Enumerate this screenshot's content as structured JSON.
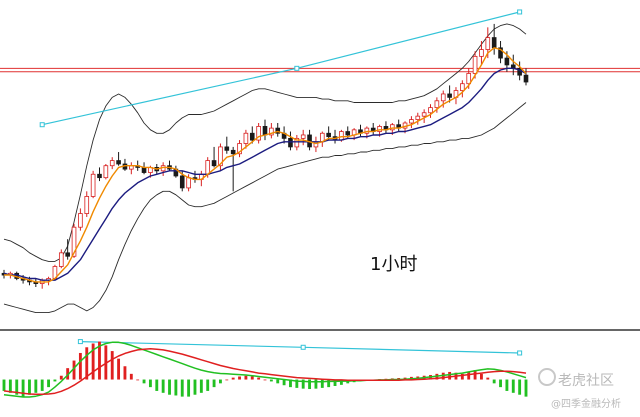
{
  "chart_data": {
    "type": "candlestick",
    "timeframe_label": "1小时",
    "watermark": {
      "brand": "老虎社区",
      "handle": "@四季金融分析"
    },
    "colors": {
      "up": "#d82020",
      "down": "#1a1a1a",
      "bollinger": "#2b2b2b",
      "ma_fast": "#f08a00",
      "ma_slow": "#1c1c80",
      "trendline": "#33c3d8",
      "horizontal_level": "#e03030",
      "macd_dif": "#22c022",
      "macd_dea": "#e02020"
    },
    "candles": [
      [
        102,
        104,
        99,
        101
      ],
      [
        101,
        103,
        99,
        102
      ],
      [
        102,
        103,
        98,
        99
      ],
      [
        99,
        101,
        96,
        98
      ],
      [
        98,
        100,
        95,
        97
      ],
      [
        97,
        99,
        94,
        96
      ],
      [
        96,
        99,
        93,
        98
      ],
      [
        98,
        100,
        95,
        99
      ],
      [
        99,
        107,
        98,
        106
      ],
      [
        106,
        116,
        105,
        114
      ],
      [
        114,
        122,
        110,
        112
      ],
      [
        112,
        131,
        111,
        129
      ],
      [
        129,
        140,
        127,
        137
      ],
      [
        137,
        150,
        135,
        147
      ],
      [
        147,
        162,
        146,
        160
      ],
      [
        160,
        164,
        156,
        158
      ],
      [
        158,
        166,
        157,
        165
      ],
      [
        165,
        170,
        163,
        168
      ],
      [
        168,
        173,
        165,
        166
      ],
      [
        166,
        169,
        162,
        163
      ],
      [
        163,
        167,
        160,
        165
      ],
      [
        165,
        168,
        162,
        164
      ],
      [
        164,
        167,
        160,
        161
      ],
      [
        161,
        165,
        158,
        164
      ],
      [
        164,
        166,
        160,
        162
      ],
      [
        162,
        167,
        159,
        165
      ],
      [
        165,
        168,
        162,
        163
      ],
      [
        163,
        165,
        158,
        159
      ],
      [
        159,
        162,
        150,
        152
      ],
      [
        152,
        160,
        150,
        158
      ],
      [
        158,
        162,
        155,
        157
      ],
      [
        157,
        162,
        153,
        160
      ],
      [
        160,
        170,
        158,
        168
      ],
      [
        168,
        176,
        164,
        165
      ],
      [
        165,
        178,
        162,
        176
      ],
      [
        176,
        182,
        172,
        174
      ],
      [
        174,
        176,
        150,
        172
      ],
      [
        172,
        180,
        170,
        178
      ],
      [
        178,
        186,
        175,
        184
      ],
      [
        184,
        188,
        178,
        180
      ],
      [
        180,
        190,
        178,
        188
      ],
      [
        188,
        192,
        180,
        183
      ],
      [
        183,
        190,
        181,
        187
      ],
      [
        187,
        190,
        182,
        184
      ],
      [
        184,
        188,
        178,
        181
      ],
      [
        181,
        185,
        174,
        176
      ],
      [
        176,
        183,
        174,
        181
      ],
      [
        181,
        186,
        177,
        183
      ],
      [
        183,
        186,
        174,
        176
      ],
      [
        176,
        182,
        173,
        179
      ],
      [
        179,
        185,
        176,
        184
      ],
      [
        184,
        188,
        180,
        182
      ],
      [
        182,
        186,
        178,
        180
      ],
      [
        180,
        186,
        179,
        185
      ],
      [
        185,
        188,
        181,
        183
      ],
      [
        183,
        187,
        180,
        186
      ],
      [
        186,
        189,
        182,
        184
      ],
      [
        184,
        188,
        181,
        187
      ],
      [
        187,
        190,
        183,
        185
      ],
      [
        185,
        189,
        182,
        188
      ],
      [
        188,
        191,
        184,
        186
      ],
      [
        186,
        190,
        183,
        189
      ],
      [
        189,
        192,
        185,
        187
      ],
      [
        187,
        191,
        184,
        190
      ],
      [
        190,
        194,
        187,
        192
      ],
      [
        192,
        196,
        189,
        194
      ],
      [
        194,
        198,
        190,
        196
      ],
      [
        196,
        201,
        193,
        199
      ],
      [
        199,
        205,
        196,
        203
      ],
      [
        203,
        209,
        199,
        207
      ],
      [
        207,
        212,
        202,
        205
      ],
      [
        205,
        211,
        201,
        209
      ],
      [
        209,
        215,
        205,
        213
      ],
      [
        213,
        222,
        210,
        219
      ],
      [
        219,
        232,
        216,
        229
      ],
      [
        229,
        238,
        224,
        233
      ],
      [
        233,
        246,
        228,
        240
      ],
      [
        240,
        248,
        230,
        234
      ],
      [
        234,
        238,
        225,
        228
      ],
      [
        228,
        232,
        220,
        224
      ],
      [
        224,
        230,
        218,
        222
      ],
      [
        222,
        226,
        215,
        218
      ],
      [
        218,
        222,
        212,
        214
      ]
    ],
    "moving_averages": [
      {
        "period": "fast",
        "values": [
          101,
          101,
          100,
          99,
          98,
          97,
          97,
          97,
          99,
          103,
          107,
          114,
          121,
          129,
          138,
          146,
          153,
          159,
          164,
          165,
          165,
          165,
          164,
          164,
          163,
          164,
          164,
          163,
          160,
          158,
          157,
          157,
          160,
          163,
          166,
          170,
          171,
          173,
          176,
          179,
          182,
          183,
          184,
          185,
          184,
          182,
          180,
          180,
          179,
          178,
          179,
          181,
          181,
          182,
          182,
          183,
          184,
          185,
          185,
          186,
          186,
          187,
          187,
          188,
          189,
          191,
          193,
          195,
          198,
          201,
          203,
          205,
          208,
          212,
          218,
          224,
          231,
          234,
          233,
          230,
          226,
          223,
          219
        ]
      },
      {
        "period": "slow",
        "values": [
          102,
          101,
          101,
          100,
          99,
          99,
          98,
          98,
          98,
          100,
          102,
          106,
          110,
          116,
          122,
          128,
          134,
          140,
          145,
          149,
          152,
          155,
          157,
          159,
          160,
          161,
          162,
          162,
          162,
          161,
          160,
          160,
          160,
          161,
          162,
          164,
          165,
          166,
          168,
          170,
          172,
          174,
          176,
          178,
          179,
          179,
          179,
          179,
          179,
          179,
          179,
          180,
          180,
          180,
          181,
          181,
          182,
          182,
          183,
          183,
          184,
          184,
          185,
          185,
          186,
          187,
          188,
          189,
          191,
          193,
          195,
          197,
          199,
          202,
          206,
          210,
          215,
          219,
          221,
          222,
          222,
          221,
          219
        ]
      }
    ],
    "bollinger_bands": {
      "upper": [
        122,
        121,
        119,
        117,
        114,
        112,
        110,
        109,
        109,
        111,
        118,
        132,
        148,
        165,
        180,
        192,
        200,
        205,
        207,
        205,
        201,
        196,
        190,
        186,
        184,
        184,
        186,
        190,
        193,
        195,
        195,
        195,
        196,
        197,
        199,
        201,
        203,
        205,
        207,
        209,
        210,
        210,
        209,
        208,
        207,
        206,
        205,
        205,
        205,
        205,
        204,
        204,
        203,
        203,
        203,
        202,
        202,
        202,
        202,
        202,
        202,
        202,
        203,
        203,
        204,
        205,
        206,
        208,
        210,
        213,
        216,
        219,
        222,
        226,
        231,
        236,
        241,
        245,
        247,
        248,
        247,
        245,
        242
      ],
      "lower": [
        84,
        83,
        82,
        81,
        80,
        79,
        79,
        79,
        80,
        82,
        84,
        84,
        82,
        80,
        82,
        86,
        92,
        100,
        110,
        119,
        127,
        134,
        140,
        145,
        148,
        150,
        150,
        148,
        145,
        142,
        141,
        141,
        142,
        143,
        145,
        147,
        149,
        151,
        153,
        155,
        157,
        159,
        161,
        163,
        164,
        165,
        166,
        167,
        168,
        169,
        170,
        170,
        171,
        171,
        172,
        172,
        173,
        173,
        174,
        174,
        175,
        175,
        176,
        176,
        177,
        177,
        178,
        178,
        179,
        179,
        180,
        180,
        181,
        181,
        182,
        183,
        185,
        187,
        190,
        193,
        196,
        199,
        202
      ]
    },
    "horizontal_levels": [
      222,
      220
    ],
    "trendlines": [
      {
        "panel": "price",
        "from": [
          6,
          189
        ],
        "via": [
          46,
          222
        ],
        "to": [
          81,
          255
        ]
      },
      {
        "panel": "macd",
        "from": [
          12,
          1.0
        ],
        "via": [
          47,
          0.85
        ],
        "to": [
          81,
          0.7
        ]
      }
    ],
    "macd": {
      "histogram": [
        -0.3,
        -0.35,
        -0.4,
        -0.45,
        -0.4,
        -0.35,
        -0.3,
        -0.2,
        -0.05,
        0.1,
        0.3,
        0.5,
        0.7,
        0.85,
        0.95,
        1.0,
        0.9,
        0.75,
        0.55,
        0.35,
        0.15,
        0.0,
        -0.1,
        -0.2,
        -0.3,
        -0.35,
        -0.4,
        -0.42,
        -0.45,
        -0.45,
        -0.4,
        -0.35,
        -0.3,
        -0.2,
        -0.1,
        0.0,
        0.05,
        0.08,
        0.1,
        0.08,
        0.05,
        0.0,
        -0.05,
        -0.1,
        -0.15,
        -0.2,
        -0.22,
        -0.24,
        -0.25,
        -0.24,
        -0.22,
        -0.2,
        -0.17,
        -0.14,
        -0.1,
        -0.07,
        -0.04,
        -0.02,
        0.0,
        0.01,
        0.02,
        0.03,
        0.04,
        0.05,
        0.07,
        0.08,
        0.1,
        0.12,
        0.15,
        0.18,
        0.2,
        0.18,
        0.15,
        0.2,
        0.25,
        0.15,
        0.05,
        -0.1,
        -0.2,
        -0.3,
        -0.35,
        -0.4,
        -0.45
      ],
      "dif": [
        -0.4,
        -0.42,
        -0.44,
        -0.46,
        -0.46,
        -0.44,
        -0.4,
        -0.33,
        -0.2,
        -0.05,
        0.12,
        0.3,
        0.48,
        0.64,
        0.78,
        0.88,
        0.95,
        0.98,
        0.98,
        0.95,
        0.9,
        0.84,
        0.78,
        0.72,
        0.66,
        0.6,
        0.54,
        0.48,
        0.42,
        0.36,
        0.3,
        0.25,
        0.21,
        0.18,
        0.16,
        0.15,
        0.14,
        0.13,
        0.12,
        0.1,
        0.08,
        0.06,
        0.04,
        0.02,
        0.0,
        -0.02,
        -0.04,
        -0.05,
        -0.06,
        -0.06,
        -0.06,
        -0.05,
        -0.05,
        -0.04,
        -0.04,
        -0.03,
        -0.03,
        -0.02,
        -0.02,
        -0.01,
        -0.01,
        0.0,
        0.0,
        0.01,
        0.02,
        0.03,
        0.05,
        0.07,
        0.09,
        0.11,
        0.13,
        0.15,
        0.17,
        0.2,
        0.23,
        0.26,
        0.28,
        0.27,
        0.24,
        0.2,
        0.15,
        0.1,
        0.05
      ],
      "dea": [
        -0.3,
        -0.32,
        -0.34,
        -0.36,
        -0.38,
        -0.39,
        -0.39,
        -0.38,
        -0.36,
        -0.31,
        -0.24,
        -0.15,
        -0.04,
        0.08,
        0.2,
        0.32,
        0.43,
        0.53,
        0.62,
        0.69,
        0.74,
        0.78,
        0.8,
        0.81,
        0.8,
        0.78,
        0.75,
        0.71,
        0.67,
        0.62,
        0.57,
        0.52,
        0.47,
        0.42,
        0.37,
        0.33,
        0.29,
        0.26,
        0.23,
        0.2,
        0.17,
        0.15,
        0.13,
        0.11,
        0.09,
        0.07,
        0.05,
        0.04,
        0.03,
        0.02,
        0.01,
        0.0,
        -0.01,
        -0.01,
        -0.02,
        -0.02,
        -0.02,
        -0.02,
        -0.02,
        -0.02,
        -0.02,
        -0.02,
        -0.02,
        -0.01,
        -0.01,
        0.0,
        0.01,
        0.02,
        0.03,
        0.05,
        0.07,
        0.09,
        0.11,
        0.13,
        0.15,
        0.17,
        0.19,
        0.21,
        0.22,
        0.22,
        0.21,
        0.19,
        0.17
      ]
    }
  }
}
